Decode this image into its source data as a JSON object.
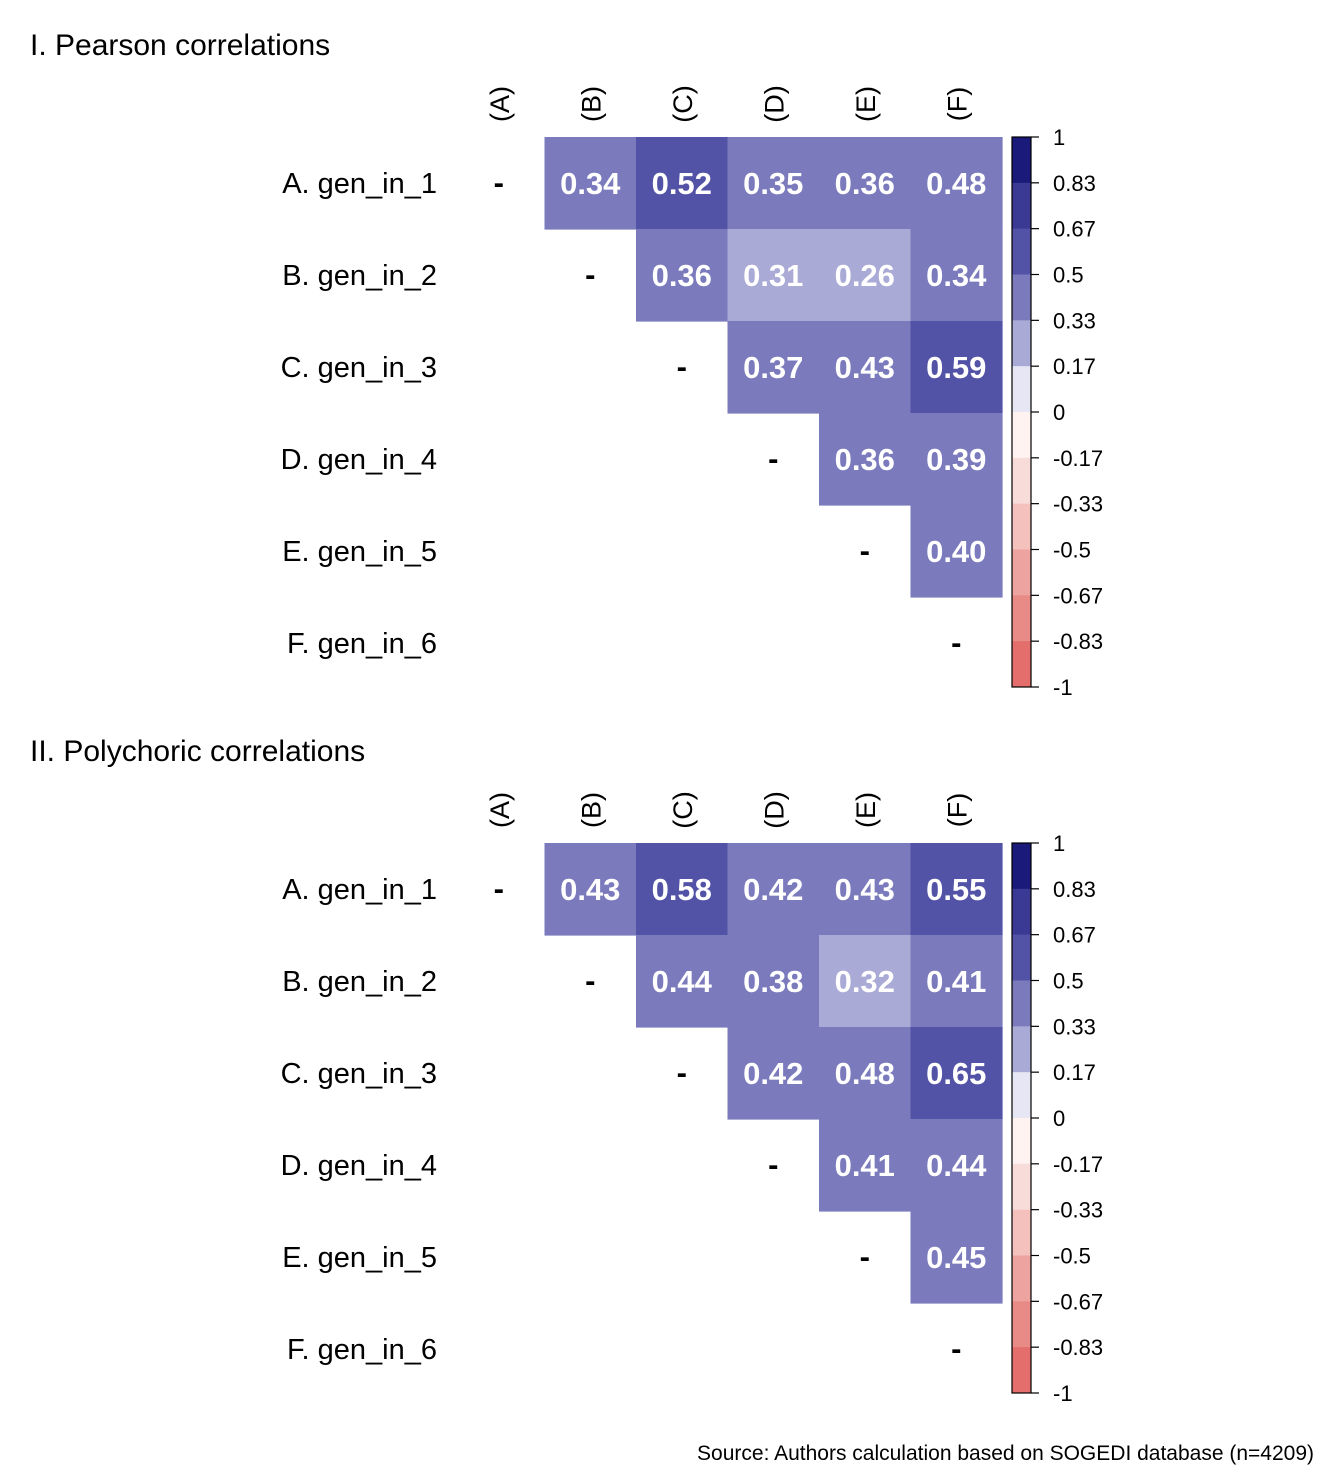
{
  "chart_data": [
    {
      "type": "heatmap",
      "title": "I. Pearson correlations",
      "rows": [
        "A. gen_in_1",
        "B. gen_in_2",
        "C. gen_in_3",
        "D. gen_in_4",
        "E. gen_in_5",
        "F. gen_in_6"
      ],
      "columns": [
        "(A)",
        "(B)",
        "(C)",
        "(D)",
        "(E)",
        "(F)"
      ],
      "diagonal_label": "-",
      "values": [
        [
          null,
          0.34,
          0.52,
          0.35,
          0.36,
          0.48
        ],
        [
          null,
          null,
          0.36,
          0.31,
          0.26,
          0.34
        ],
        [
          null,
          null,
          null,
          0.37,
          0.43,
          0.59
        ],
        [
          null,
          null,
          null,
          null,
          0.36,
          0.39
        ],
        [
          null,
          null,
          null,
          null,
          null,
          0.4
        ],
        [
          null,
          null,
          null,
          null,
          null,
          null
        ]
      ],
      "value_labels": [
        [
          "",
          "0.34",
          "0.52",
          "0.35",
          "0.36",
          "0.48"
        ],
        [
          "",
          "",
          "0.36",
          "0.31",
          "0.26",
          "0.34"
        ],
        [
          "",
          "",
          "",
          "0.37",
          "0.43",
          "0.59"
        ],
        [
          "",
          "",
          "",
          "",
          "0.36",
          "0.39"
        ],
        [
          "",
          "",
          "",
          "",
          "",
          "0.40"
        ],
        [
          "",
          "",
          "",
          "",
          "",
          ""
        ]
      ],
      "legend": {
        "range": [
          -1,
          1
        ],
        "tick_labels": [
          "1",
          "0.83",
          "0.67",
          "0.5",
          "0.33",
          "0.17",
          "0",
          "-0.17",
          "-0.33",
          "-0.5",
          "-0.67",
          "-0.83",
          "-1"
        ],
        "placement": "right"
      }
    },
    {
      "type": "heatmap",
      "title": "II. Polychoric correlations",
      "rows": [
        "A. gen_in_1",
        "B. gen_in_2",
        "C. gen_in_3",
        "D. gen_in_4",
        "E. gen_in_5",
        "F. gen_in_6"
      ],
      "columns": [
        "(A)",
        "(B)",
        "(C)",
        "(D)",
        "(E)",
        "(F)"
      ],
      "diagonal_label": "-",
      "values": [
        [
          null,
          0.43,
          0.58,
          0.42,
          0.43,
          0.55
        ],
        [
          null,
          null,
          0.44,
          0.38,
          0.32,
          0.41
        ],
        [
          null,
          null,
          null,
          0.42,
          0.48,
          0.65
        ],
        [
          null,
          null,
          null,
          null,
          0.41,
          0.44
        ],
        [
          null,
          null,
          null,
          null,
          null,
          0.45
        ],
        [
          null,
          null,
          null,
          null,
          null,
          null
        ]
      ],
      "value_labels": [
        [
          "",
          "0.43",
          "0.58",
          "0.42",
          "0.43",
          "0.55"
        ],
        [
          "",
          "",
          "0.44",
          "0.38",
          "0.32",
          "0.41"
        ],
        [
          "",
          "",
          "",
          "0.42",
          "0.48",
          "0.65"
        ],
        [
          "",
          "",
          "",
          "",
          "0.41",
          "0.44"
        ],
        [
          "",
          "",
          "",
          "",
          "",
          "0.45"
        ],
        [
          "",
          "",
          "",
          "",
          "",
          ""
        ]
      ],
      "legend": {
        "range": [
          -1,
          1
        ],
        "tick_labels": [
          "1",
          "0.83",
          "0.67",
          "0.5",
          "0.33",
          "0.17",
          "0",
          "-0.17",
          "-0.33",
          "-0.5",
          "-0.67",
          "-0.83",
          "-1"
        ],
        "placement": "right"
      }
    }
  ],
  "colors": {
    "bins_top_to_bottom": [
      "#1a1a7a",
      "#3a3a94",
      "#5252a6",
      "#7a7abc",
      "#aaaad6",
      "#e6e6f4",
      "#fff3f1",
      "#f8dcd9",
      "#f4c1bd",
      "#eda39f",
      "#e88a86",
      "#e36e6b"
    ],
    "bin_thresholds_top_to_bottom": [
      0.83,
      0.67,
      0.5,
      0.33,
      0.17,
      0,
      -0.17,
      -0.33,
      -0.5,
      -0.67,
      -0.83,
      -1
    ]
  },
  "source": "Source: Authors calculation based on SOGEDI database (n=4209)"
}
